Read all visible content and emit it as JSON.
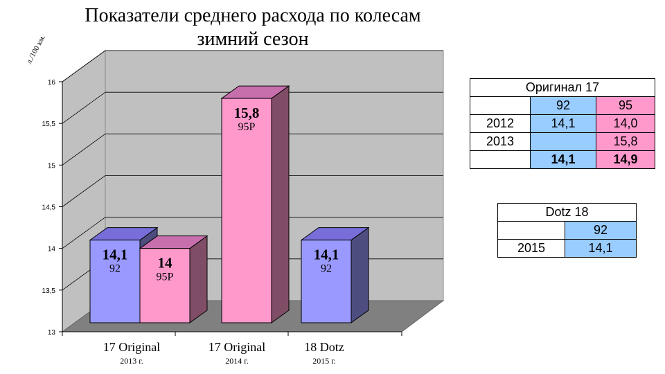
{
  "title": [
    "Показатели среднего расхода по колесам",
    "зимний сезон"
  ],
  "chart_data": {
    "type": "bar",
    "ylabel": "л./100 км.",
    "ylim": [
      13,
      16
    ],
    "yticks": [
      "13",
      "13,5",
      "14",
      "14,5",
      "15",
      "15,5",
      "16"
    ],
    "ytick_values": [
      13,
      13.5,
      14,
      14.5,
      15,
      15.5,
      16
    ],
    "grid": true,
    "bars": [
      {
        "group": 0,
        "value": 14.1,
        "label": "14,1",
        "sublabel": "92",
        "color": "#9999ff"
      },
      {
        "group": 0,
        "value": 14.0,
        "label": "14",
        "sublabel": "95Р",
        "color": "#ff99cc"
      },
      {
        "group": 1,
        "value": 15.8,
        "label": "15,8",
        "sublabel": "95Р",
        "color": "#ff99cc"
      },
      {
        "group": 2,
        "value": 14.1,
        "label": "14,1",
        "sublabel": "92",
        "color": "#9999ff"
      }
    ],
    "categories": [
      {
        "label": "17 Original",
        "sub": "2013 г."
      },
      {
        "label": "17 Original",
        "sub": "2014 г."
      },
      {
        "label": "18 Dotz",
        "sub": "2015 г."
      }
    ]
  },
  "table_original": {
    "title": "Оригинал 17",
    "headers": [
      "",
      "92",
      "95"
    ],
    "rows": [
      [
        "2012",
        "14,1",
        "14,0"
      ],
      [
        "2013",
        "",
        "15,8"
      ],
      [
        "",
        "14,1",
        "14,9"
      ]
    ]
  },
  "table_dotz": {
    "title": "Dotz 18",
    "headers": [
      "",
      "92"
    ],
    "rows": [
      [
        "2015",
        "14,1"
      ]
    ]
  }
}
